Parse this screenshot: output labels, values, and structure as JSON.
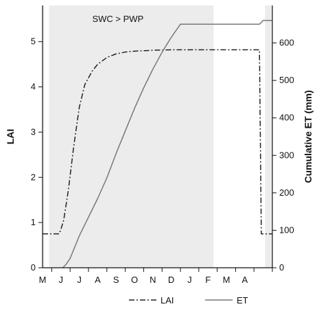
{
  "chart_data": {
    "type": "line",
    "months": [
      "M",
      "J",
      "J",
      "A",
      "S",
      "O",
      "N",
      "D",
      "J",
      "F",
      "M",
      "A"
    ],
    "annotation": "SWC > PWP",
    "ylabel_left": "LAI",
    "ylabel_right": "Cumulative ET (mm)",
    "ylim_left": [
      0,
      5.8
    ],
    "ylim_right": [
      0,
      700
    ],
    "yticks_left": [
      0,
      1,
      2,
      3,
      4,
      5
    ],
    "yticks_right": [
      0,
      100,
      200,
      300,
      400,
      500,
      600
    ],
    "grid": false,
    "legend_position": "bottom",
    "x_domain": [
      0,
      12.5
    ],
    "shaded_periods": [
      [
        0.0,
        0.1
      ],
      [
        0.35,
        9.3
      ],
      [
        12.1,
        12.5
      ]
    ],
    "series": [
      {
        "name": "LAI",
        "axis": "left",
        "style": "dash-dot",
        "color": "#222222",
        "x": [
          0.0,
          0.5,
          0.9,
          1.0,
          1.15,
          1.4,
          1.7,
          2.0,
          2.3,
          2.7,
          3.0,
          3.5,
          4.0,
          4.5,
          5.0,
          6.0,
          7.0,
          8.0,
          9.0,
          10.0,
          11.0,
          11.8,
          11.9,
          12.5
        ],
        "y": [
          0.75,
          0.75,
          0.75,
          0.85,
          1.05,
          1.7,
          2.7,
          3.55,
          4.05,
          4.35,
          4.5,
          4.65,
          4.73,
          4.77,
          4.79,
          4.81,
          4.82,
          4.82,
          4.82,
          4.82,
          4.82,
          4.82,
          0.75,
          0.75
        ]
      },
      {
        "name": "ET",
        "axis": "right",
        "style": "solid",
        "color": "#777777",
        "x": [
          1.1,
          1.3,
          1.5,
          2.0,
          2.5,
          3.0,
          3.5,
          4.0,
          4.5,
          5.0,
          5.5,
          6.0,
          6.5,
          7.0,
          7.5,
          8.0,
          8.5,
          9.0,
          9.3,
          10.0,
          11.0,
          11.8,
          12.0,
          12.5
        ],
        "y": [
          0,
          10,
          25,
          85,
          135,
          185,
          240,
          305,
          365,
          425,
          480,
          530,
          575,
          615,
          650,
          650,
          650,
          650,
          650,
          650,
          650,
          650,
          660,
          660
        ]
      }
    ]
  }
}
